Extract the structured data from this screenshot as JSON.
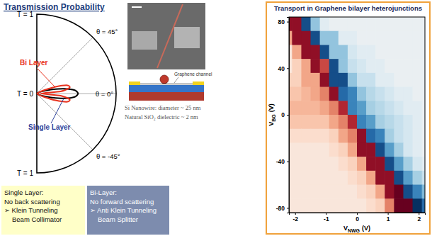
{
  "chart_data": [
    {
      "type": "polar",
      "title": "Transmission Probability",
      "theta": [
        -90,
        -30,
        -25,
        -20,
        -15,
        -10,
        -5,
        0,
        5,
        10,
        15,
        20,
        25,
        30,
        90
      ],
      "series": [
        {
          "name": "Bi Layer",
          "color": "#e8321e",
          "values": [
            0,
            0.03,
            0.1,
            0.25,
            0.4,
            0.42,
            0.3,
            0.05,
            0.3,
            0.42,
            0.4,
            0.25,
            0.1,
            0.03,
            0
          ]
        },
        {
          "name": "Single Layer",
          "color": "#000000",
          "values": [
            0,
            0.02,
            0.05,
            0.1,
            0.2,
            0.35,
            0.48,
            0.52,
            0.48,
            0.35,
            0.2,
            0.1,
            0.05,
            0.02,
            0
          ]
        }
      ],
      "rlim": [
        0,
        1
      ],
      "rticks": [
        {
          "value": 0,
          "label": "T = 0"
        },
        {
          "value": 1,
          "label": "T = 1"
        }
      ],
      "thetalim": [
        -90,
        90
      ],
      "thetaticks": [
        {
          "value": 45,
          "label": "θ = 45°"
        },
        {
          "value": 0,
          "label": "θ = 0°"
        },
        {
          "value": -45,
          "label": "θ = -45°"
        }
      ]
    },
    {
      "type": "heatmap",
      "title": "Transport in Graphene bilayer heterojunctions",
      "xlabel": {
        "text": "V",
        "sub": "NWG",
        "unit": "(V)"
      },
      "ylabel": {
        "text": "V",
        "sub": "BG",
        "unit": "(V)"
      },
      "xlim": [
        -2.2,
        2.2
      ],
      "ylim": [
        -84,
        84
      ],
      "xticks": [
        -2,
        -1,
        0,
        1,
        2
      ],
      "yticks": [
        -80,
        -40,
        0,
        40,
        80
      ],
      "x": [
        -2.25,
        -1.95,
        -1.65,
        -1.35,
        -1.05,
        -0.75,
        -0.45,
        -0.15,
        0.15,
        0.45,
        0.75,
        1.05,
        1.35,
        1.65,
        1.95,
        2.25
      ],
      "y": [
        78,
        66,
        54,
        42,
        30,
        18,
        6,
        -6,
        -18,
        -30,
        -42,
        -54,
        -66,
        -78
      ],
      "z": [
        [
          0.8,
          0.8,
          -0.8,
          -0.35,
          -0.1,
          -0.05,
          -0.05,
          -0.05,
          -0.05,
          -0.05,
          -0.05,
          -0.05,
          -0.05,
          -0.05,
          -0.05,
          -0.05
        ],
        [
          0.35,
          0.8,
          0.8,
          -0.8,
          -0.35,
          -0.35,
          -0.1,
          -0.1,
          -0.05,
          -0.05,
          -0.05,
          -0.05,
          -0.05,
          -0.05,
          -0.05,
          -0.05
        ],
        [
          0.1,
          0.35,
          0.8,
          0.8,
          -0.8,
          -0.35,
          -0.35,
          -0.15,
          -0.1,
          -0.1,
          -0.05,
          -0.05,
          -0.05,
          -0.05,
          -0.05,
          -0.05
        ],
        [
          0.1,
          0.2,
          0.35,
          0.8,
          0.6,
          -0.8,
          -0.35,
          -0.2,
          -0.15,
          -0.1,
          -0.1,
          -0.05,
          -0.05,
          -0.05,
          -0.05,
          -0.05
        ],
        [
          0.2,
          0.2,
          0.35,
          0.35,
          0.8,
          -0.8,
          -0.8,
          -0.35,
          -0.2,
          -0.2,
          -0.1,
          -0.1,
          -0.05,
          -0.05,
          -0.05,
          -0.05
        ],
        [
          0.25,
          0.25,
          0.3,
          0.35,
          0.45,
          0.8,
          -0.7,
          -0.6,
          -0.35,
          -0.25,
          -0.2,
          -0.15,
          -0.1,
          -0.1,
          -0.05,
          -0.05
        ],
        [
          0.3,
          0.3,
          0.3,
          0.3,
          0.35,
          0.45,
          0.7,
          -0.6,
          -0.5,
          -0.3,
          -0.25,
          -0.2,
          -0.15,
          -0.1,
          -0.1,
          -0.05
        ],
        [
          0.25,
          0.25,
          0.25,
          0.25,
          0.25,
          0.35,
          0.45,
          0.7,
          -0.6,
          -0.5,
          -0.3,
          -0.25,
          -0.2,
          -0.15,
          -0.1,
          -0.05
        ],
        [
          0.15,
          0.15,
          0.15,
          0.15,
          0.15,
          0.2,
          0.35,
          0.45,
          0.8,
          -0.7,
          -0.6,
          -0.3,
          -0.2,
          -0.15,
          -0.1,
          -0.05
        ],
        [
          0.1,
          0.1,
          0.1,
          0.1,
          0.1,
          0.15,
          0.2,
          0.35,
          0.8,
          0.8,
          -0.8,
          -0.5,
          -0.3,
          -0.15,
          -0.1,
          -0.05
        ],
        [
          0.1,
          0.1,
          0.1,
          0.1,
          0.1,
          0.1,
          0.15,
          0.2,
          0.35,
          0.8,
          0.8,
          -0.8,
          -0.5,
          -0.3,
          -0.15,
          -0.1
        ],
        [
          0.1,
          0.1,
          0.1,
          0.1,
          0.1,
          0.1,
          0.1,
          0.15,
          0.2,
          0.35,
          0.8,
          0.8,
          -0.8,
          -0.5,
          -0.3,
          -0.2
        ],
        [
          0.1,
          0.1,
          0.1,
          0.1,
          0.1,
          0.1,
          0.1,
          0.1,
          0.15,
          0.2,
          0.35,
          0.8,
          0.9,
          -0.8,
          -0.6,
          -0.4
        ],
        [
          0.1,
          0.1,
          0.1,
          0.1,
          0.1,
          0.1,
          0.1,
          0.1,
          0.1,
          0.15,
          0.2,
          0.45,
          0.9,
          0.9,
          -0.9,
          -0.7
        ]
      ]
    }
  ],
  "device": {
    "channel_label": "Graphene channel",
    "captions": [
      "Si Nanowire: diameter ~ 25 nm",
      "Natural SiO₂ dielectric ~ 2 nm"
    ]
  },
  "notes": [
    {
      "lines": [
        "Single Layer:",
        "No back scattering",
        "➢ Klein Tunneling",
        "Beam Collimator"
      ]
    },
    {
      "lines": [
        "Bi-Layer:",
        "No forward scattering",
        "➢ Anti Klein Tunneling",
        "Beam Splitter"
      ]
    }
  ]
}
